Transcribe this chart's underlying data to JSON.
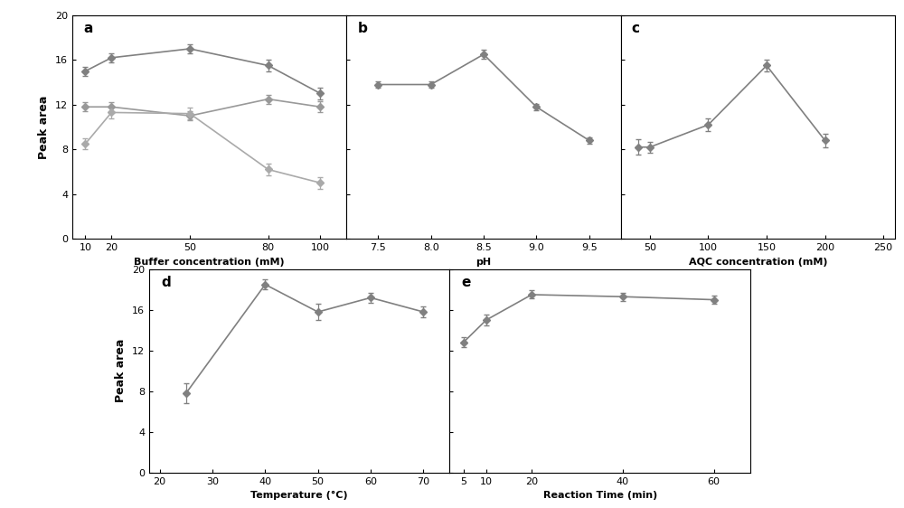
{
  "panel_a": {
    "label": "a",
    "xlabel": "Buffer concentration (mM)",
    "x": [
      10,
      20,
      50,
      80,
      100
    ],
    "series": [
      {
        "y": [
          15.0,
          16.2,
          17.0,
          15.5,
          13.0
        ],
        "yerr": [
          0.4,
          0.4,
          0.4,
          0.5,
          0.5
        ],
        "color": "#808080"
      },
      {
        "y": [
          11.8,
          11.8,
          11.0,
          12.5,
          11.8
        ],
        "yerr": [
          0.4,
          0.4,
          0.4,
          0.4,
          0.5
        ],
        "color": "#999999"
      },
      {
        "y": [
          8.5,
          11.3,
          11.2,
          6.2,
          5.0
        ],
        "yerr": [
          0.5,
          0.5,
          0.5,
          0.5,
          0.5
        ],
        "color": "#aaaaaa"
      }
    ],
    "ylim": [
      0,
      20
    ],
    "yticks": [
      0,
      4,
      8,
      12,
      16,
      20
    ],
    "xlim": [
      5,
      110
    ],
    "xticks": [
      10,
      20,
      50,
      80,
      100
    ]
  },
  "panel_b": {
    "label": "b",
    "xlabel": "pH",
    "x": [
      7.5,
      8.0,
      8.5,
      9.0,
      9.5
    ],
    "series": [
      {
        "y": [
          13.8,
          13.8,
          16.5,
          11.8,
          8.8
        ],
        "yerr": [
          0.3,
          0.3,
          0.4,
          0.3,
          0.3
        ],
        "color": "#808080"
      }
    ],
    "ylim": [
      0,
      20
    ],
    "yticks": [
      0,
      4,
      8,
      12,
      16,
      20
    ],
    "xlim": [
      7.2,
      9.8
    ],
    "xticks": [
      7.5,
      8.0,
      8.5,
      9.0,
      9.5
    ]
  },
  "panel_c": {
    "label": "c",
    "xlabel": "AQC concentration (mM)",
    "x": [
      40,
      50,
      100,
      150,
      200
    ],
    "series": [
      {
        "y": [
          8.2,
          8.2,
          10.2,
          15.5,
          8.8
        ],
        "yerr": [
          0.7,
          0.5,
          0.6,
          0.5,
          0.6
        ],
        "color": "#808080"
      }
    ],
    "ylim": [
      0,
      20
    ],
    "yticks": [
      0,
      4,
      8,
      12,
      16,
      20
    ],
    "xlim": [
      25,
      260
    ],
    "xticks": [
      50,
      100,
      150,
      200,
      250
    ]
  },
  "panel_d": {
    "label": "d",
    "xlabel": "Temperature (°C)",
    "x": [
      25,
      40,
      50,
      60,
      70
    ],
    "series": [
      {
        "y": [
          7.8,
          18.5,
          15.8,
          17.2,
          15.8
        ],
        "yerr": [
          1.0,
          0.5,
          0.8,
          0.5,
          0.5
        ],
        "color": "#808080"
      }
    ],
    "ylim": [
      0,
      20
    ],
    "yticks": [
      0,
      4,
      8,
      12,
      16,
      20
    ],
    "xlim": [
      18,
      75
    ],
    "xticks": [
      20,
      30,
      40,
      50,
      60,
      70
    ]
  },
  "panel_e": {
    "label": "e",
    "xlabel": "Reaction Time (min)",
    "x": [
      5,
      10,
      20,
      40,
      60
    ],
    "series": [
      {
        "y": [
          12.8,
          15.0,
          17.5,
          17.3,
          17.0
        ],
        "yerr": [
          0.5,
          0.5,
          0.4,
          0.4,
          0.4
        ],
        "color": "#808080"
      }
    ],
    "ylim": [
      0,
      20
    ],
    "yticks": [
      0,
      4,
      8,
      12,
      16,
      20
    ],
    "xlim": [
      2,
      68
    ],
    "xticks": [
      5,
      10,
      20,
      40,
      60
    ]
  },
  "ylabel": "Peak area",
  "line_color": "#808080",
  "marker": "D",
  "markersize": 4,
  "linewidth": 1.2,
  "capsize": 2.5,
  "elinewidth": 0.9,
  "bg_color": "#ffffff",
  "tick_fontsize": 8,
  "xlabel_fontsize": 8,
  "label_fontsize": 11,
  "ylabel_fontsize": 9
}
